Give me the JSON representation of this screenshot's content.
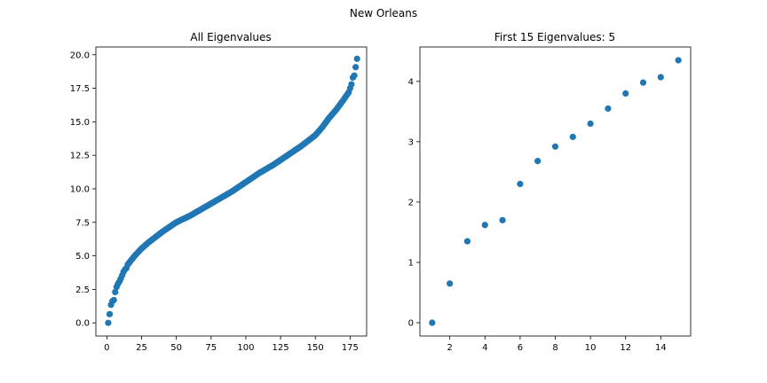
{
  "figure": {
    "suptitle": "New Orleans"
  },
  "colors": {
    "point": "#1f77b4",
    "axes": "#000000",
    "background": "#ffffff"
  },
  "chart_data": [
    {
      "type": "scatter",
      "title": "All Eigenvalues",
      "xlabel": "",
      "ylabel": "",
      "xlim": [
        -7.9,
        186.9
      ],
      "ylim": [
        -0.98,
        20.58
      ],
      "xticks": [
        0,
        25,
        50,
        75,
        100,
        125,
        150,
        175
      ],
      "yticks": [
        0.0,
        2.5,
        5.0,
        7.5,
        10.0,
        12.5,
        15.0,
        17.5,
        20.0
      ],
      "ytick_format": "1dp",
      "grid": false,
      "legend": "none",
      "series": [
        {
          "anchors": [
            [
              1,
              0.0
            ],
            [
              2,
              0.65
            ],
            [
              3,
              1.35
            ],
            [
              4,
              1.62
            ],
            [
              5,
              1.7
            ],
            [
              6,
              2.3
            ],
            [
              7,
              2.68
            ],
            [
              8,
              2.92
            ],
            [
              9,
              3.08
            ],
            [
              10,
              3.3
            ],
            [
              11,
              3.55
            ],
            [
              12,
              3.8
            ],
            [
              13,
              3.98
            ],
            [
              14,
              4.07
            ],
            [
              15,
              4.35
            ],
            [
              20,
              5.0
            ],
            [
              25,
              5.55
            ],
            [
              30,
              6.0
            ],
            [
              40,
              6.8
            ],
            [
              50,
              7.5
            ],
            [
              60,
              8.0
            ],
            [
              70,
              8.6
            ],
            [
              80,
              9.2
            ],
            [
              90,
              9.8
            ],
            [
              100,
              10.5
            ],
            [
              110,
              11.2
            ],
            [
              120,
              11.8
            ],
            [
              130,
              12.5
            ],
            [
              140,
              13.2
            ],
            [
              150,
              14.0
            ],
            [
              155,
              14.6
            ],
            [
              160,
              15.3
            ],
            [
              165,
              15.9
            ],
            [
              170,
              16.6
            ],
            [
              174,
              17.2
            ],
            [
              176,
              17.8
            ],
            [
              177,
              18.3
            ],
            [
              178,
              18.45
            ],
            [
              180,
              19.7
            ]
          ],
          "n_points": 180
        }
      ]
    },
    {
      "type": "scatter",
      "title": "First 15 Eigenvalues: 5",
      "xlabel": "",
      "ylabel": "",
      "xlim": [
        0.3,
        15.7
      ],
      "ylim": [
        -0.22,
        4.57
      ],
      "xticks": [
        2,
        4,
        6,
        8,
        10,
        12,
        14
      ],
      "yticks": [
        0,
        1,
        2,
        3,
        4
      ],
      "ytick_format": "int",
      "grid": false,
      "legend": "none",
      "series": [
        {
          "x": [
            1,
            2,
            3,
            4,
            5,
            6,
            7,
            8,
            9,
            10,
            11,
            12,
            13,
            14,
            15
          ],
          "y": [
            0.0,
            0.65,
            1.35,
            1.62,
            1.7,
            2.3,
            2.68,
            2.92,
            3.08,
            3.3,
            3.55,
            3.8,
            3.98,
            4.07,
            4.35
          ]
        }
      ]
    }
  ]
}
